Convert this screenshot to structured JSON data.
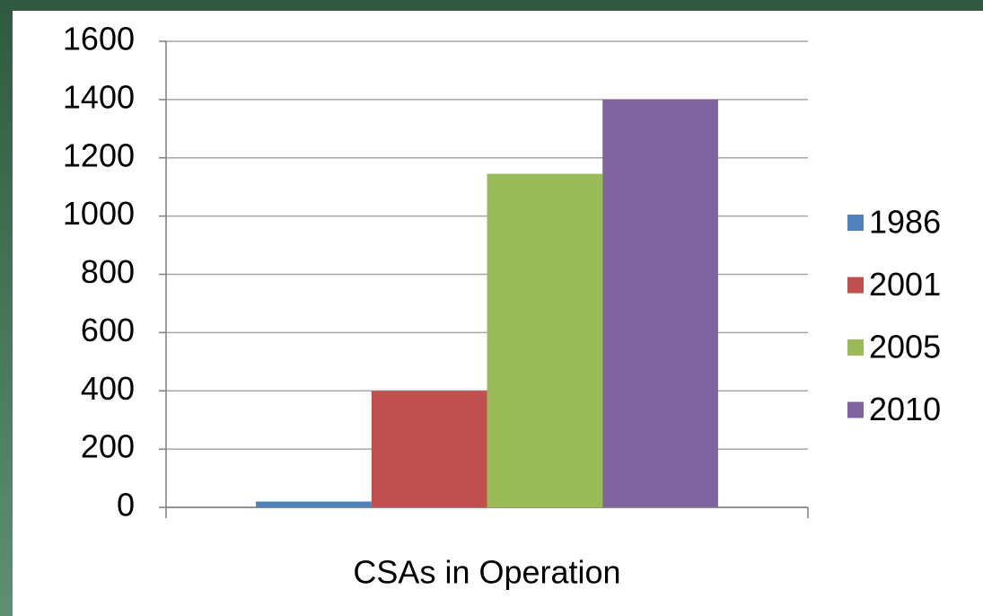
{
  "chart_data": {
    "type": "bar",
    "categories": [
      "CSAs in Operation"
    ],
    "series": [
      {
        "name": "1986",
        "color": "#4f81bd",
        "values": [
          20
        ]
      },
      {
        "name": "2001",
        "color": "#c0504d",
        "values": [
          400
        ]
      },
      {
        "name": "2005",
        "color": "#9bbb59",
        "values": [
          1145
        ]
      },
      {
        "name": "2010",
        "color": "#8064a2",
        "values": [
          1400
        ]
      }
    ],
    "ylim": [
      0,
      1600
    ],
    "yticks": [
      0,
      200,
      400,
      600,
      800,
      1000,
      1200,
      1400,
      1600
    ],
    "grid": true,
    "legend": "right"
  }
}
